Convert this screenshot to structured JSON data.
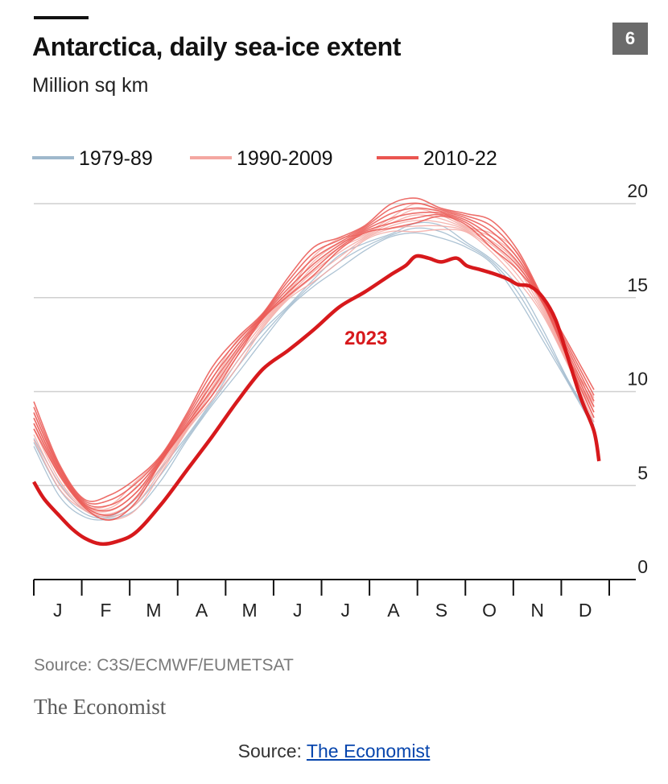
{
  "header": {
    "chart_number": "6",
    "title": "Antarctica, daily sea-ice extent",
    "subtitle": "Million sq km"
  },
  "legend": [
    {
      "label": "1979-89",
      "color": "#9fb8cc"
    },
    {
      "label": "1990-2009",
      "color": "#f4a7a1"
    },
    {
      "label": "2010-22",
      "color": "#ea5550"
    }
  ],
  "footer": {
    "source": "Source: C3S/ECMWF/EUMETSAT",
    "brand": "The Economist"
  },
  "credit": {
    "prefix": "Source: ",
    "link_text": "The Economist"
  },
  "chart_data": {
    "type": "line",
    "title": "Antarctica, daily sea-ice extent",
    "ylabel": "Million sq km",
    "x_unit": "month",
    "x_ticks": [
      "J",
      "F",
      "M",
      "A",
      "M",
      "J",
      "J",
      "A",
      "S",
      "O",
      "N",
      "D"
    ],
    "xlim": [
      1,
      12.3
    ],
    "ylim": [
      0,
      20
    ],
    "y_ticks": [
      0,
      5,
      10,
      15,
      20
    ],
    "grid": true,
    "legend_position": "top-left",
    "annotations": [
      {
        "text": "2023",
        "x": 7.1,
        "y": 12.5,
        "color": "#d7191c"
      }
    ],
    "series_color": {
      "1979-89": "#9fb8cc",
      "1990-2009": "#f4a7a1",
      "2010-22": "#ea5550",
      "2023": "#d7191c"
    },
    "series": [
      {
        "name": "2023",
        "x": [
          1.0,
          1.2,
          1.5,
          1.75,
          2.0,
          2.3,
          2.6,
          3.0,
          3.5,
          4.0,
          4.5,
          5.0,
          5.5,
          6.0,
          6.5,
          7.0,
          7.5,
          8.0,
          8.3,
          8.5,
          8.75,
          9.0,
          9.3,
          9.5,
          9.75,
          10.0,
          10.3,
          10.5,
          10.75,
          11.0,
          11.25,
          11.5,
          11.75,
          12.0,
          12.1
        ],
        "y": [
          5.2,
          4.3,
          3.4,
          2.7,
          2.2,
          1.9,
          2.0,
          2.5,
          4.0,
          5.8,
          7.6,
          9.5,
          11.2,
          12.2,
          13.3,
          14.5,
          15.3,
          16.2,
          16.7,
          17.2,
          17.1,
          16.9,
          17.1,
          16.7,
          16.5,
          16.3,
          16.0,
          15.7,
          15.6,
          15.0,
          13.8,
          11.7,
          9.6,
          7.9,
          6.3
        ]
      }
    ],
    "bands": [
      {
        "name": "1979-89",
        "x": [
          1.0,
          1.5,
          2.0,
          2.5,
          3.0,
          3.5,
          4.0,
          4.5,
          5.0,
          5.5,
          6.0,
          6.5,
          7.0,
          7.5,
          8.0,
          8.5,
          9.0,
          9.5,
          10.0,
          10.5,
          11.0,
          11.5,
          12.0
        ],
        "y": [
          7.3,
          4.8,
          3.5,
          3.3,
          4.0,
          5.6,
          7.5,
          9.4,
          11.3,
          13.0,
          14.5,
          15.8,
          16.9,
          17.7,
          18.3,
          18.7,
          18.5,
          17.8,
          16.9,
          15.3,
          13.0,
          10.5,
          8.2
        ]
      },
      {
        "name": "1990-2009",
        "x": [
          1.0,
          1.5,
          2.0,
          2.5,
          3.0,
          3.5,
          4.0,
          4.5,
          5.0,
          5.5,
          6.0,
          6.5,
          7.0,
          7.5,
          8.0,
          8.5,
          9.0,
          9.5,
          10.0,
          10.5,
          11.0,
          11.5,
          12.0
        ],
        "y": [
          8.0,
          5.3,
          3.8,
          3.5,
          4.3,
          6.0,
          8.0,
          10.0,
          11.9,
          13.6,
          15.1,
          16.4,
          17.4,
          18.2,
          18.8,
          19.1,
          19.0,
          18.6,
          17.8,
          16.5,
          14.3,
          11.5,
          8.9
        ]
      },
      {
        "name": "2010-22",
        "x": [
          1.0,
          1.5,
          2.0,
          2.5,
          3.0,
          3.5,
          4.0,
          4.5,
          5.0,
          5.5,
          6.0,
          6.5,
          7.0,
          7.5,
          8.0,
          8.5,
          9.0,
          9.5,
          10.0,
          10.5,
          11.0,
          11.5,
          12.0
        ],
        "y": [
          8.6,
          5.8,
          4.0,
          3.7,
          4.6,
          6.4,
          8.4,
          10.4,
          12.3,
          14.0,
          15.5,
          16.8,
          17.8,
          18.6,
          19.2,
          19.5,
          19.5,
          19.1,
          18.2,
          16.9,
          14.8,
          12.0,
          9.2
        ]
      }
    ]
  }
}
